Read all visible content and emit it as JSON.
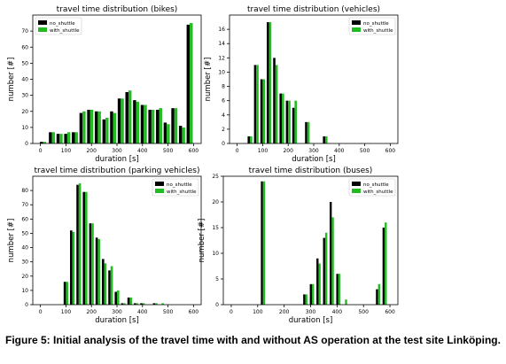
{
  "caption": "Figure 5: Initial analysis of the travel time with and without AS operation at the test site Linköping.",
  "colors": {
    "no_shuttle": "#000000",
    "with_shuttle": "#22bb22",
    "axes": "#000000",
    "tick_text": "#000000"
  },
  "chart_data": [
    {
      "type": "bar",
      "title": "travel time distribution (bikes)",
      "xlabel": "duration [s]",
      "ylabel": "number [#]",
      "xlim": [
        -30,
        630
      ],
      "ylim": [
        0,
        80
      ],
      "xticks": [
        0,
        100,
        200,
        300,
        400,
        500,
        600
      ],
      "yticks": [
        0,
        10,
        20,
        30,
        40,
        50,
        60,
        70
      ],
      "legend": "top-left",
      "bin_width": 24,
      "x": [
        10,
        45,
        75,
        105,
        135,
        165,
        195,
        225,
        255,
        285,
        315,
        345,
        375,
        405,
        435,
        465,
        495,
        525,
        555,
        585
      ],
      "series": [
        {
          "name": "no_shuttle",
          "values": [
            1,
            7,
            6,
            6,
            7,
            19,
            21,
            20,
            15,
            20,
            28,
            32,
            27,
            24,
            21,
            21,
            13,
            22,
            11,
            74
          ]
        },
        {
          "name": "with_shuttle",
          "values": [
            1,
            7,
            6,
            7,
            7,
            20,
            21,
            20,
            16,
            19,
            28,
            33,
            26,
            24,
            21,
            22,
            12,
            22,
            10,
            75
          ]
        }
      ]
    },
    {
      "type": "bar",
      "title": "travel time distribution (vehicles)",
      "xlabel": "duration [s]",
      "ylabel": "number [#]",
      "xlim": [
        -30,
        630
      ],
      "ylim": [
        0,
        18
      ],
      "xticks": [
        0,
        100,
        200,
        300,
        400,
        500,
        600
      ],
      "yticks": [
        0,
        2,
        4,
        6,
        8,
        10,
        12,
        14,
        16
      ],
      "legend": "top-right",
      "bin_width": 18,
      "x": [
        50,
        75,
        100,
        125,
        150,
        175,
        200,
        225,
        240,
        275,
        345
      ],
      "series": [
        {
          "name": "no_shuttle",
          "values": [
            1,
            11,
            9,
            17,
            12,
            7,
            6,
            5,
            0,
            3,
            1
          ]
        },
        {
          "name": "with_shuttle",
          "values": [
            1,
            11,
            9,
            17,
            11,
            7,
            6,
            6,
            0,
            3,
            1
          ]
        }
      ]
    },
    {
      "type": "bar",
      "title": "travel time distribution (parking vehicles)",
      "xlabel": "duration [s]",
      "ylabel": "number [#]",
      "xlim": [
        -30,
        630
      ],
      "ylim": [
        0,
        90
      ],
      "xticks": [
        0,
        100,
        200,
        300,
        400,
        500,
        600
      ],
      "yticks": [
        0,
        10,
        20,
        30,
        40,
        50,
        60,
        70,
        80
      ],
      "legend": "top-right",
      "bin_width": 18,
      "x": [
        100,
        125,
        150,
        175,
        200,
        225,
        250,
        275,
        300,
        325,
        350,
        375,
        400,
        450,
        475
      ],
      "series": [
        {
          "name": "no_shuttle",
          "values": [
            16,
            52,
            84,
            79,
            57,
            47,
            32,
            24,
            9,
            1,
            5,
            1,
            1,
            1,
            0
          ]
        },
        {
          "name": "with_shuttle",
          "values": [
            16,
            51,
            85,
            79,
            57,
            46,
            29,
            27,
            10,
            1,
            5,
            1,
            1,
            1,
            1
          ]
        }
      ]
    },
    {
      "type": "bar",
      "title": "travel time distribution (buses)",
      "xlabel": "duration [s]",
      "ylabel": "number [#]",
      "xlim": [
        -30,
        630
      ],
      "ylim": [
        0,
        25
      ],
      "xticks": [
        0,
        100,
        200,
        300,
        400,
        500,
        600
      ],
      "yticks": [
        0,
        5,
        10,
        15,
        20,
        25
      ],
      "legend": "top-right",
      "bin_width": 16,
      "x": [
        120,
        280,
        305,
        330,
        355,
        380,
        405,
        430,
        555,
        580
      ],
      "series": [
        {
          "name": "no_shuttle",
          "values": [
            24,
            2,
            4,
            9,
            13,
            20,
            6,
            0,
            3,
            15
          ]
        },
        {
          "name": "with_shuttle",
          "values": [
            24,
            2,
            4,
            8,
            14,
            17,
            6,
            1,
            4,
            16
          ]
        }
      ]
    }
  ]
}
